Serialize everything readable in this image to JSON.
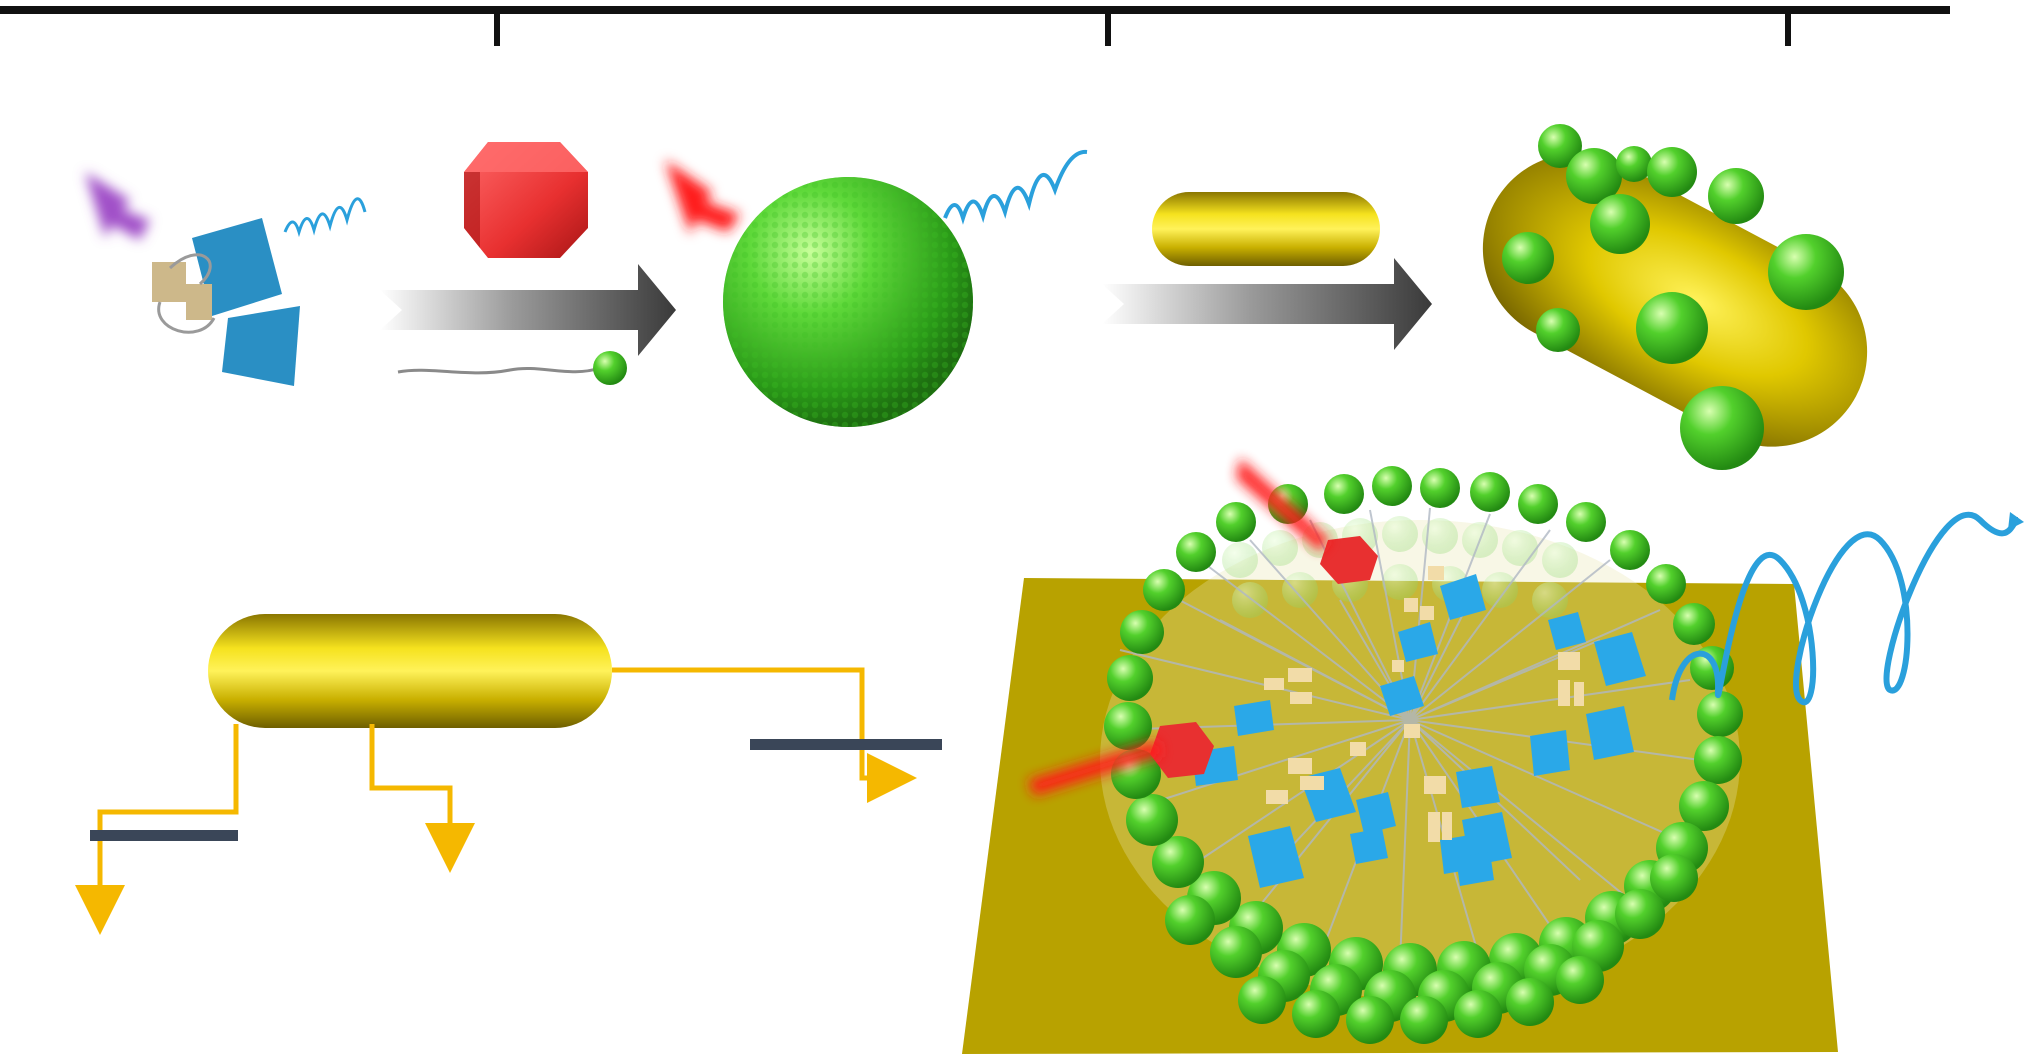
{
  "diagram": {
    "kind": "schematic-illustration",
    "text_labels": [],
    "colors": {
      "green_sphere": "#4fcf2e",
      "gold": "#b8a200",
      "gold_light": "#f2e020",
      "red_light": "#ff1a1a",
      "purple_light": "#a050c8",
      "blue_block": "#2aa0dc",
      "blue_block_dark": "#1f7fb0",
      "tan_block": "#d8bf8a",
      "spiral_blue": "#2aa0dc",
      "arrow_orange": "#f5b800",
      "bar_dark": "#3a4658",
      "axis_black": "#111111"
    },
    "top_panel": {
      "steps": [
        {
          "name": "protein-complex",
          "icons": [
            "purple-light-arrow-icon",
            "blue-block-icon",
            "tan-block-icon",
            "emission-spiral-icon"
          ]
        },
        {
          "name": "assembly-arrow-1",
          "icons": [
            "red-polyhedron-icon",
            "gray-gradient-arrow-icon",
            "lipid-chain-icon"
          ]
        },
        {
          "name": "green-vesicle",
          "icons": [
            "red-light-arrow-icon",
            "green-sphere-icon",
            "emission-spiral-icon"
          ]
        },
        {
          "name": "assembly-arrow-2",
          "icons": [
            "gold-nanorod-icon",
            "gray-gradient-arrow-icon"
          ]
        },
        {
          "name": "decorated-nanorod",
          "icons": [
            "gold-capsule-icon",
            "small-green-sphere-icon"
          ]
        }
      ]
    },
    "bottom_panel": {
      "left": {
        "name": "nanorod-energy-diagram",
        "icons": [
          "gold-nanorod-icon",
          "orange-step-arrow-icon",
          "dark-level-bar-icon"
        ]
      },
      "right": {
        "name": "vesicle-on-surface",
        "icons": [
          "gold-plane-icon",
          "green-sphere-shell-icon",
          "blue-block-icon",
          "tan-block-icon",
          "red-polyhedron-icon",
          "red-light-arrow-icon",
          "emission-spiral-icon"
        ]
      }
    }
  }
}
